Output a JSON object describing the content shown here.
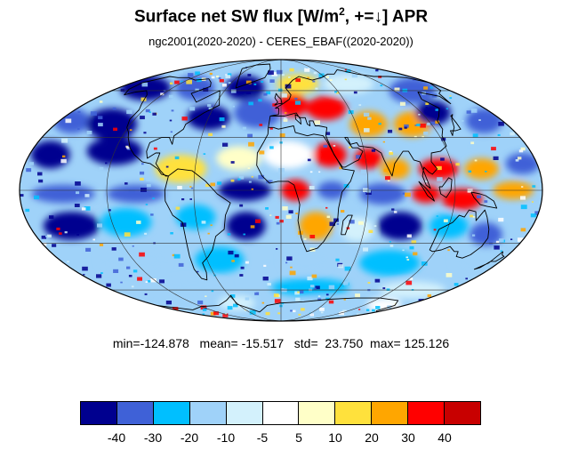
{
  "title": {
    "main": "Surface net SW flux [W/m",
    "sup": "2",
    "rest": ", +=↓]  APR"
  },
  "subtitle": "ngc2001(2020-2020) - CERES_EBAF((2020-2020))",
  "stats": {
    "min_label": "min=",
    "min": "-124.878",
    "mean_label": "mean=",
    "mean": "-15.517",
    "std_label": "std=",
    "std": "23.750",
    "max_label": "max=",
    "max": "125.126"
  },
  "map": {
    "projection": "Mollweide",
    "graticule_lon_step_deg": 60,
    "graticule_lat_step_deg": 30,
    "coastline_color": "#000000"
  },
  "colorbar": {
    "colors": [
      "#00008f",
      "#3f61d7",
      "#00bfff",
      "#9fd2f9",
      "#d3f1fc",
      "#ffffff",
      "#ffffc8",
      "#ffe13c",
      "#ffa600",
      "#ff0000",
      "#c80000"
    ],
    "labels": [
      "-40",
      "-30",
      "-20",
      "-10",
      "-5",
      "5",
      "10",
      "20",
      "30",
      "40"
    ]
  }
}
